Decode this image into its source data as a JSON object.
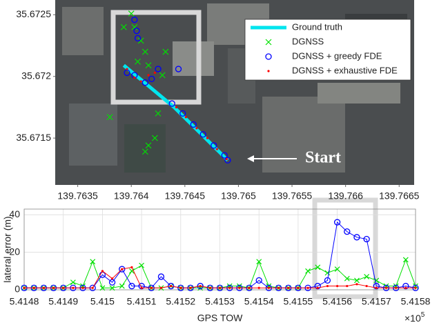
{
  "chart_data": [
    {
      "type": "scatter",
      "xlim": [
        139.76329,
        139.76664
      ],
      "ylim": [
        35.67112,
        35.67262
      ],
      "xticks": [
        139.7635,
        139.764,
        139.7645,
        139.765,
        139.7655,
        139.766,
        139.7665
      ],
      "yticks": [
        35.6715,
        35.672,
        35.6725
      ],
      "legend": "top-right",
      "annotation": "Start",
      "series": [
        {
          "name": "Ground truth",
          "color": "#00e5ee",
          "marker": "line",
          "x": [
            139.76393,
            139.7644,
            139.7649
          ],
          "y": [
            35.67209,
            35.67175,
            35.67132
          ]
        },
        {
          "name": "DGNSS",
          "color": "#00e000",
          "marker": "x",
          "x": [
            139.764,
            139.76403,
            139.76409,
            139.76413,
            139.76406,
            139.76432,
            139.7638,
            139.76425,
            139.76416,
            139.76413,
            139.76422,
            139.76393,
            139.76416,
            139.76429
          ],
          "y": [
            35.67251,
            35.6724,
            35.67229,
            35.6722,
            35.67212,
            35.6722,
            35.67167,
            35.6717,
            35.67144,
            35.67139,
            35.6715,
            35.6724,
            35.67209,
            35.67201
          ]
        },
        {
          "name": "DGNSS + greedy FDE",
          "color": "#0000ff",
          "marker": "o",
          "x": [
            139.76403,
            139.76405,
            139.76406,
            139.76396,
            139.76403,
            139.76413,
            139.76419,
            139.76425,
            139.76444,
            139.76438,
            139.76448,
            139.76458,
            139.76467,
            139.76477,
            139.76487,
            139.7649
          ],
          "y": [
            35.67246,
            35.67237,
            35.67231,
            35.67203,
            35.67201,
            35.67195,
            35.67198,
            35.67206,
            35.67206,
            35.67178,
            35.6717,
            35.67161,
            35.67153,
            35.67144,
            35.67136,
            35.67132
          ]
        },
        {
          "name": "DGNSS + exhaustive FDE",
          "color": "#ff0000",
          "marker": "dot",
          "x": [
            139.76396,
            139.76403,
            139.76409,
            139.76416,
            139.76422,
            139.76442,
            139.76451,
            139.76461,
            139.76471,
            139.7648,
            139.76489
          ],
          "y": [
            35.67206,
            35.67199,
            35.67196,
            35.67201,
            35.67203,
            35.67175,
            35.67167,
            35.67158,
            35.6715,
            35.67141,
            35.67133
          ]
        }
      ]
    },
    {
      "type": "line",
      "x_label": "GPS TOW",
      "y_label": "lateral error (m)",
      "x_multiplier": "×10",
      "x_multiplier_exponent": "5",
      "xlim": [
        5.4148,
        5.4158
      ],
      "ylim": [
        0,
        43
      ],
      "xticks": [
        5.4148,
        5.4149,
        5.415,
        5.4151,
        5.4152,
        5.4153,
        5.4154,
        5.4155,
        5.4156,
        5.4157,
        5.4158
      ],
      "yticks": [
        0,
        20,
        40
      ],
      "grid": true,
      "x": [
        5.4148,
        5.414825,
        5.41485,
        5.414875,
        5.4149,
        5.414925,
        5.41495,
        5.414975,
        5.415,
        5.415025,
        5.41505,
        5.415075,
        5.4151,
        5.415125,
        5.41515,
        5.415175,
        5.4152,
        5.415225,
        5.41525,
        5.415275,
        5.4153,
        5.415325,
        5.41535,
        5.415375,
        5.4154,
        5.415425,
        5.41545,
        5.415475,
        5.4155,
        5.415525,
        5.41555,
        5.415575,
        5.4156,
        5.415625,
        5.41565,
        5.415675,
        5.4157,
        5.415725,
        5.41575,
        5.415775,
        5.4158
      ],
      "series": [
        {
          "name": "DGNSS",
          "color": "#00e000",
          "marker": "x",
          "values": [
            1,
            1,
            1,
            1,
            1,
            4,
            2,
            15,
            1,
            1,
            2,
            10,
            13,
            1,
            1,
            2,
            1,
            1,
            1,
            1,
            1,
            2,
            2,
            1,
            15,
            2,
            1,
            1,
            1,
            10,
            12,
            9,
            11,
            6,
            5,
            7,
            5,
            2,
            2,
            16,
            2
          ]
        },
        {
          "name": "DGNSS + greedy FDE",
          "color": "#0000ff",
          "marker": "o",
          "values": [
            1,
            1,
            1,
            1,
            1,
            1,
            1,
            1,
            8,
            4,
            11,
            2,
            2,
            1,
            7,
            2,
            1,
            1,
            2,
            1,
            1,
            1,
            1,
            1,
            5,
            1,
            1,
            1,
            1,
            1,
            2,
            5,
            36,
            31,
            28,
            27,
            2,
            1,
            1,
            2,
            1
          ]
        },
        {
          "name": "DGNSS + exhaustive FDE",
          "color": "#ff0000",
          "marker": "dot",
          "values": [
            1,
            1,
            1,
            1,
            1,
            1,
            1,
            1,
            10,
            6,
            11,
            12,
            1,
            1,
            1,
            2,
            1,
            1,
            2,
            1,
            1,
            1,
            1,
            1,
            1,
            1,
            1,
            1,
            1,
            1,
            1,
            2,
            2,
            2,
            3,
            2,
            1,
            1,
            1,
            1,
            1
          ]
        }
      ]
    }
  ]
}
